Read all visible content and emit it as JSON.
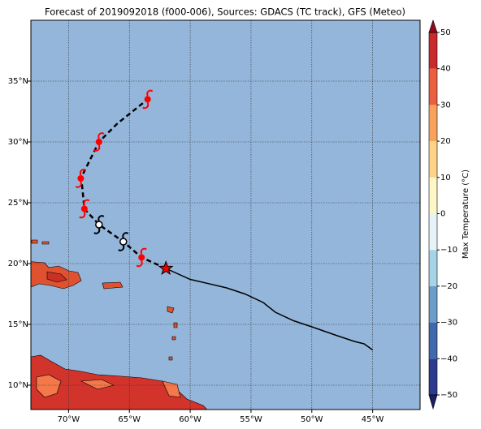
{
  "title": "Forecast of 2019092018 (f000-006), Sources: GDACS (TC track), GFS (Meteo)",
  "map": {
    "xlim": [
      -73.1,
      -41.1
    ],
    "ylim": [
      8,
      40
    ],
    "grid": true,
    "ocean_color": "#94b6da",
    "xticks": [
      {
        "value": -70,
        "label": "70°W"
      },
      {
        "value": -65,
        "label": "65°W"
      },
      {
        "value": -60,
        "label": "60°W"
      },
      {
        "value": -55,
        "label": "55°W"
      },
      {
        "value": -50,
        "label": "50°W"
      },
      {
        "value": -45,
        "label": "45°W"
      }
    ],
    "yticks": [
      {
        "value": 10,
        "label": "10°N"
      },
      {
        "value": 15,
        "label": "15°N"
      },
      {
        "value": 20,
        "label": "20°N"
      },
      {
        "value": 25,
        "label": "25°N"
      },
      {
        "value": 30,
        "label": "30°N"
      },
      {
        "value": 35,
        "label": "35°N"
      }
    ],
    "past_track": {
      "lon": [
        -62,
        -60,
        -57,
        -55.5,
        -54,
        -53,
        -51.5,
        -50,
        -48,
        -46.5,
        -45.7,
        -45
      ],
      "lat": [
        19.6,
        18.7,
        18,
        17.5,
        16.8,
        16,
        15.3,
        14.8,
        14.1,
        13.6,
        13.4,
        12.9
      ]
    },
    "forecast_track": {
      "lon": [
        -62,
        -64,
        -65.5,
        -67.5,
        -68.7,
        -68.9,
        -69,
        -67.5,
        -66,
        -63.5
      ],
      "lat": [
        19.6,
        20.5,
        21.8,
        23.2,
        24.5,
        26.5,
        27,
        30,
        31.5,
        33.5
      ]
    },
    "current_position": {
      "lon": -62,
      "lat": 19.6
    },
    "hurricane_markers": {
      "lon": [
        -64,
        -68.7,
        -69,
        -67.5,
        -63.5
      ],
      "lat": [
        20.5,
        24.5,
        27,
        30,
        33.5
      ]
    },
    "storm_markers": {
      "lon": [
        -67.5,
        -65.5
      ],
      "lat": [
        23.2,
        21.8
      ]
    }
  },
  "colorbar": {
    "label": "Max Temperature (°C)",
    "ticks": [
      {
        "value": -50,
        "label": "−50"
      },
      {
        "value": -40,
        "label": "−40"
      },
      {
        "value": -30,
        "label": "−30"
      },
      {
        "value": -20,
        "label": "−20"
      },
      {
        "value": -10,
        "label": "−10"
      },
      0,
      10,
      20,
      30,
      40,
      50
    ],
    "colors": [
      "#2c3a8f",
      "#3f68ad",
      "#6b9dcb",
      "#a6d3e6",
      "#e6f4f7",
      "#fdf6c8",
      "#fdd387",
      "#f9a25b",
      "#ec5f3e",
      "#c92a2c"
    ],
    "extend_colors": [
      "#1d1f5e",
      "#8e0b1f"
    ]
  }
}
